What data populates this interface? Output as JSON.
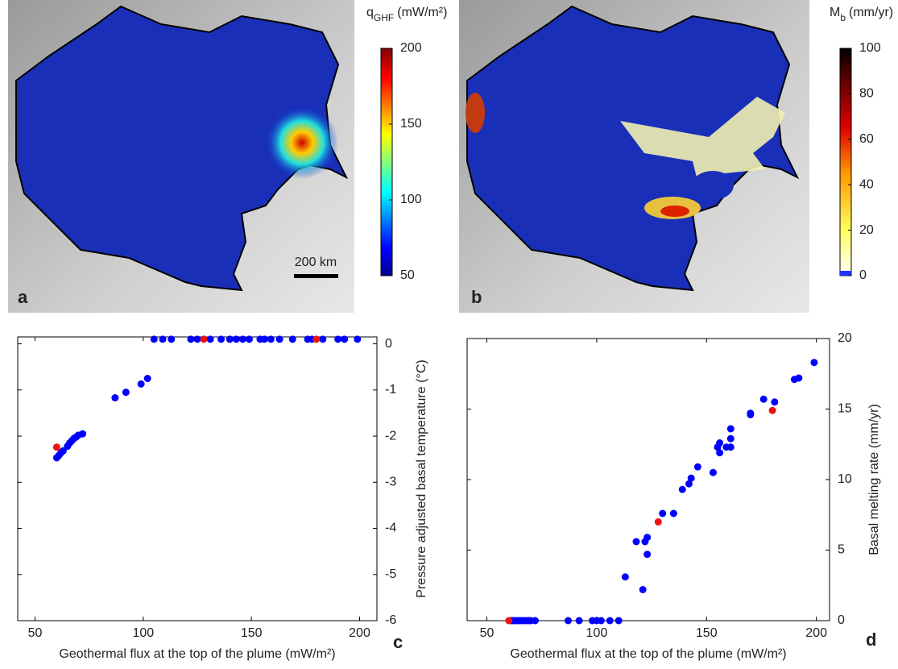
{
  "maps": [
    {
      "panel": "a",
      "label": "q",
      "label_sub": "GHF",
      "label_unit": "(mW/m²)",
      "scale_bar": "200 km",
      "lim": [
        50,
        200
      ],
      "ticks": [
        50,
        100,
        150,
        200
      ]
    },
    {
      "panel": "b",
      "label": "M",
      "label_sub": "b",
      "label_unit": "(mm/yr)",
      "lim": [
        0,
        100
      ],
      "ticks": [
        0,
        20,
        40,
        60,
        80,
        100
      ]
    }
  ],
  "chart_data": [
    {
      "type": "scatter",
      "panel": "c",
      "xlabel": "Geothermal flux at the top of the plume (mW/m²)",
      "ylabel": "Pressure adjusted basal temperature (°C)",
      "xlim": [
        42,
        208
      ],
      "xticks": [
        50,
        100,
        150,
        200
      ],
      "ylim": [
        -6,
        0.15
      ],
      "yticks": [
        -6,
        -5,
        -4,
        -3,
        -2,
        -1,
        0
      ],
      "series": [
        {
          "color": "#0000ff",
          "x": [
            105,
            109,
            113,
            122,
            125,
            131,
            136,
            140,
            143,
            146,
            149,
            154,
            156,
            159,
            163,
            169,
            176,
            178,
            183,
            190,
            193,
            199,
            60,
            61,
            62,
            63,
            65,
            66,
            67,
            68,
            69,
            70,
            72,
            87,
            92,
            99,
            102
          ],
          "values": [
            0.1,
            0.1,
            0.1,
            0.1,
            0.1,
            0.1,
            0.1,
            0.1,
            0.1,
            0.1,
            0.1,
            0.1,
            0.1,
            0.1,
            0.1,
            0.1,
            0.1,
            0.1,
            0.1,
            0.1,
            0.1,
            0.1,
            -2.47,
            -2.42,
            -2.36,
            -2.32,
            -2.22,
            -2.15,
            -2.1,
            -2.05,
            -2.02,
            -1.98,
            -1.95,
            -1.17,
            -1.05,
            -0.87,
            -0.75
          ]
        },
        {
          "color": "#ee1111",
          "x": [
            60,
            128,
            180
          ],
          "values": [
            -2.24,
            0.1,
            0.1
          ]
        }
      ]
    },
    {
      "type": "scatter",
      "panel": "d",
      "xlabel": "Geothermal flux at the top of the plume (mW/m²)",
      "ylabel": "Basal melting rate (mm/yr)",
      "xlim": [
        41,
        206
      ],
      "xticks": [
        50,
        100,
        150,
        200
      ],
      "ylim": [
        0,
        20
      ],
      "yticks": [
        0,
        5,
        10,
        15,
        20
      ],
      "series": [
        {
          "color": "#0000ff",
          "x": [
            61,
            62,
            63,
            64,
            65,
            66,
            67,
            68,
            69,
            70,
            72,
            87,
            92,
            98,
            100,
            102,
            106,
            110,
            113,
            118,
            121,
            122,
            123,
            123,
            130,
            135,
            139,
            142,
            143,
            146,
            153,
            155,
            156,
            156,
            159,
            161,
            161,
            161,
            170,
            170,
            176,
            181,
            190,
            192,
            199
          ],
          "values": [
            0,
            0,
            0,
            0,
            0,
            0,
            0,
            0,
            0,
            0,
            0,
            0,
            0,
            0,
            0,
            0,
            0,
            0,
            3.1,
            5.6,
            2.2,
            5.6,
            4.7,
            5.9,
            7.6,
            7.6,
            9.3,
            9.7,
            10.1,
            10.9,
            10.5,
            12.3,
            12.6,
            11.9,
            12.3,
            12.3,
            12.9,
            13.6,
            14.6,
            14.7,
            15.7,
            15.5,
            17.1,
            17.2,
            18.3
          ]
        },
        {
          "color": "#ee1111",
          "x": [
            60,
            128,
            180
          ],
          "values": [
            0,
            7,
            14.9
          ]
        }
      ]
    }
  ]
}
